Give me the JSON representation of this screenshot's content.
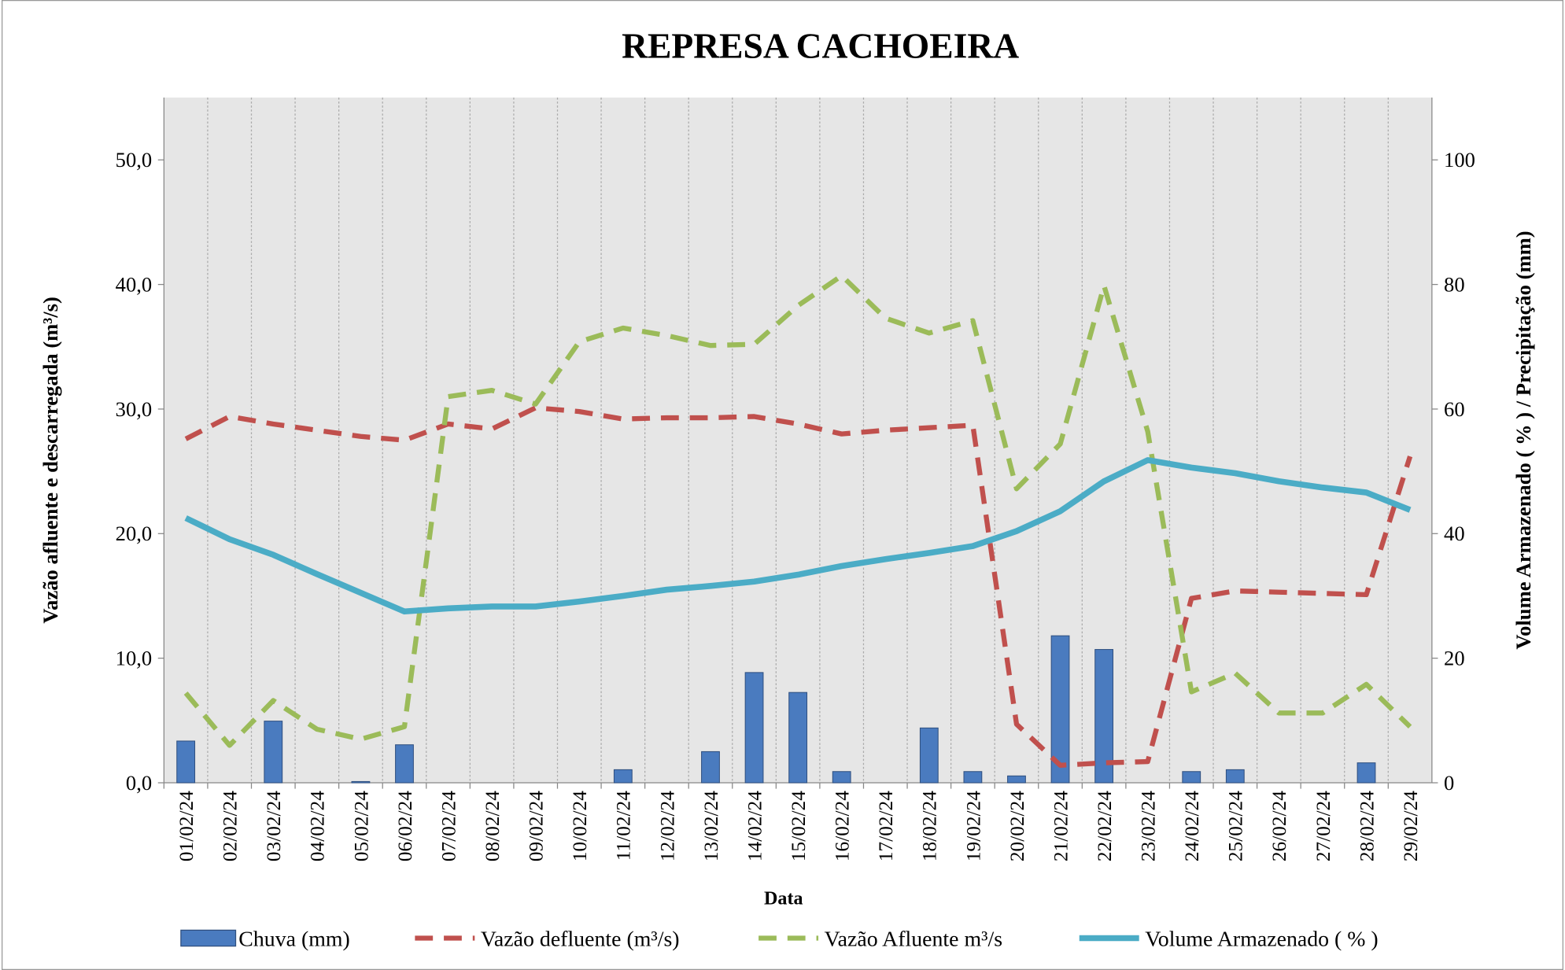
{
  "chart_data": {
    "type": "combo",
    "title": "REPRESA CACHOEIRA",
    "x_label": "Data",
    "y_label": "Vazão afluente e descarregada (m³/s)",
    "y2_label": "Volume Armazenado ( % ) / Precipitação  (mm)",
    "categories": [
      "01/02/24",
      "02/02/24",
      "03/02/24",
      "04/02/24",
      "05/02/24",
      "06/02/24",
      "07/02/24",
      "08/02/24",
      "09/02/24",
      "10/02/24",
      "11/02/24",
      "12/02/24",
      "13/02/24",
      "14/02/24",
      "15/02/24",
      "16/02/24",
      "17/02/24",
      "18/02/24",
      "19/02/24",
      "20/02/24",
      "21/02/24",
      "22/02/24",
      "23/02/24",
      "24/02/24",
      "25/02/24",
      "26/02/24",
      "27/02/24",
      "28/02/24",
      "29/02/24"
    ],
    "ylim": [
      0,
      55
    ],
    "yticks": [
      {
        "value": 0,
        "label": "0,0"
      },
      {
        "value": 10,
        "label": "10,0"
      },
      {
        "value": 20,
        "label": "20,0"
      },
      {
        "value": 30,
        "label": "30,0"
      },
      {
        "value": 40,
        "label": "40,0"
      },
      {
        "value": 50,
        "label": "50,0"
      }
    ],
    "y2lim": [
      0,
      110
    ],
    "y2ticks": [
      0,
      20,
      40,
      60,
      80,
      100
    ],
    "grid": true,
    "series": [
      {
        "name": "Chuva (mm)",
        "type": "bar",
        "axis": "y2",
        "color": "#4a7bbf",
        "values": [
          6.7,
          0,
          9.9,
          0,
          0.2,
          6.1,
          0,
          0,
          0,
          0,
          2.1,
          0,
          5.0,
          17.7,
          14.5,
          1.8,
          0,
          8.8,
          1.8,
          1.1,
          23.6,
          21.4,
          0,
          1.8,
          2.1,
          0,
          0,
          3.2,
          0
        ]
      },
      {
        "name": "Vazão defluente (m³/s)",
        "type": "line",
        "dash": true,
        "color": "#c0504d",
        "values": [
          27.6,
          29.4,
          28.8,
          28.3,
          27.8,
          27.5,
          28.8,
          28.4,
          30.1,
          29.8,
          29.2,
          29.3,
          29.3,
          29.4,
          28.8,
          28.0,
          28.3,
          28.5,
          28.7,
          4.7,
          1.4,
          1.6,
          1.7,
          14.8,
          15.4,
          15.3,
          15.2,
          15.1,
          26.2
        ]
      },
      {
        "name": "Vazão Afluente m³/s",
        "type": "line",
        "dash": true,
        "color": "#9bbb59",
        "values": [
          7.2,
          3.0,
          6.6,
          4.3,
          3.5,
          4.5,
          31.0,
          31.5,
          30.4,
          35.4,
          36.5,
          35.9,
          35.1,
          35.2,
          38.3,
          40.7,
          37.3,
          36.1,
          37.1,
          23.6,
          27.2,
          39.9,
          28.2,
          7.3,
          8.8,
          5.6,
          5.6,
          7.9,
          4.5
        ]
      },
      {
        "name": "Volume Armazenado ( % )",
        "type": "line",
        "dash": false,
        "axis": "y2",
        "color": "#4bacc6",
        "values": [
          42.5,
          39.1,
          36.6,
          33.5,
          30.5,
          27.5,
          28.0,
          28.3,
          28.3,
          29.1,
          30.0,
          31.0,
          31.6,
          32.3,
          33.4,
          34.8,
          35.9,
          36.9,
          38.0,
          40.4,
          43.6,
          48.4,
          51.8,
          50.6,
          49.7,
          48.4,
          47.4,
          46.6,
          43.8
        ]
      }
    ]
  }
}
